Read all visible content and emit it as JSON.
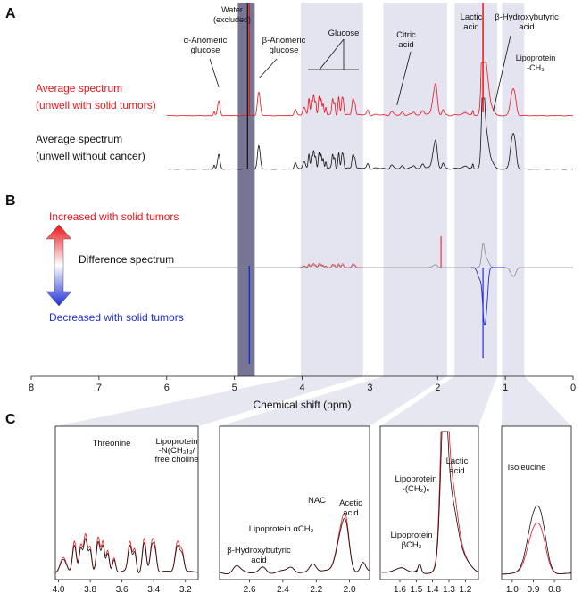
{
  "chart_data": {
    "type": "line",
    "xlabel": "Chemical shift (ppm)",
    "x_axis": {
      "range": [
        8,
        0
      ],
      "ticks": [
        "8",
        "7",
        "6",
        "5",
        "4",
        "3",
        "2",
        "1",
        "0"
      ]
    },
    "colors": {
      "tumor": "#e8141a",
      "control": "#111111",
      "difference": "#8c8c8c",
      "increase": "#e8141a",
      "decrease": "#1e2fd6",
      "band": "#e4e4f1",
      "water_band": "#6f6f8e"
    },
    "panel_letters": {
      "a": "A",
      "b": "B",
      "c": "C"
    },
    "highlight_regions_ppm": [
      [
        4.7,
        4.95
      ],
      [
        3.1,
        4.02
      ],
      [
        1.86,
        2.8
      ],
      [
        1.12,
        1.75
      ],
      [
        0.72,
        1.05
      ]
    ],
    "panel_a": {
      "series": [
        {
          "name": "tumor",
          "label_line1": "Average spectrum",
          "label_line2": "(unwell with solid tumors)",
          "peaks_ppm": [
            5.23,
            4.64,
            4.1,
            3.9,
            3.83,
            3.75,
            3.72,
            3.55,
            3.46,
            3.41,
            3.25,
            2.68,
            2.52,
            2.03,
            1.33,
            1.29,
            0.9,
            0.86
          ]
        },
        {
          "name": "control",
          "label_line1": "Average spectrum",
          "label_line2": "(unwell without cancer)",
          "peaks_ppm": [
            5.23,
            4.64,
            4.1,
            3.9,
            3.83,
            3.75,
            3.72,
            3.55,
            3.46,
            3.41,
            3.25,
            2.68,
            2.52,
            2.03,
            1.33,
            1.29,
            0.9,
            0.86
          ]
        }
      ],
      "annotations": {
        "alpha_glucose": [
          "α-Anomeric",
          "glucose"
        ],
        "water": [
          "Water",
          "(excluded)"
        ],
        "beta_glucose": [
          "β-Anomeric",
          "glucose"
        ],
        "glucose": "Glucose",
        "citric": [
          "Citric",
          "acid"
        ],
        "lactic": [
          "Lactic",
          "acid"
        ],
        "bhb": [
          "β-Hydroxybutyric",
          "acid"
        ],
        "lipoprotein_ch3": [
          "Lipoprotein",
          "-CH₃"
        ]
      }
    },
    "panel_b": {
      "label": "Difference spectrum",
      "increase_label": "Increased with solid tumors",
      "decrease_label": "Decreased with solid tumors"
    },
    "panel_c": [
      {
        "range": [
          4.02,
          3.12
        ],
        "ticks": [
          "4.0",
          "3.8",
          "3.6",
          "3.4",
          "3.2"
        ],
        "annotations": {
          "threonine": "Threonine",
          "lipo_n": [
            "Lipoprotein",
            "-N(CH₃)₃/",
            "free choline"
          ]
        }
      },
      {
        "range": [
          2.78,
          1.88
        ],
        "ticks": [
          "2.6",
          "2.4",
          "2.2",
          "2.0"
        ],
        "annotations": {
          "nac": "NAC",
          "lipo_a": "Lipoprotein αCH₂",
          "bhb": [
            "β-Hydroxybutyric",
            "acid"
          ],
          "acetic": [
            "Acetic",
            "acid"
          ]
        }
      },
      {
        "range": [
          1.72,
          1.12
        ],
        "ticks": [
          "1.6",
          "1.5",
          "1.4",
          "1.3",
          "1.2"
        ],
        "annotations": {
          "lactic": [
            "Lactic",
            "acid"
          ],
          "lipo_ch2n": [
            "Lipoprotein",
            "-(CH₂)ₙ"
          ],
          "lipo_b": [
            "Lipoprotein",
            "βCH₂"
          ]
        }
      },
      {
        "range": [
          1.05,
          0.72
        ],
        "ticks": [
          "1.0",
          "0.9",
          "0.8"
        ],
        "annotations": {
          "isoleucine": "Isoleucine"
        }
      }
    ]
  }
}
